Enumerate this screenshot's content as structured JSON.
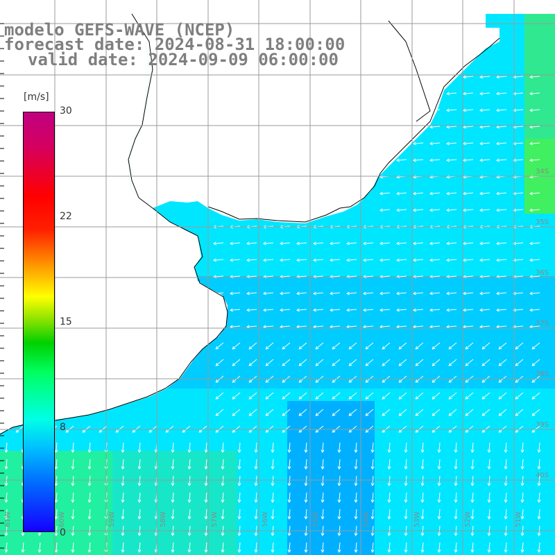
{
  "title": {
    "line1": "modelo GEFS-WAVE (NCEP)",
    "line2": "forecast date: 2024-08-31 18:00:00",
    "line3": "valid date: 2024-09-09 06:00:00"
  },
  "colorbar": {
    "units": "[m/s]",
    "ticks": [
      {
        "label": "30",
        "value": 30
      },
      {
        "label": "22",
        "value": 22
      },
      {
        "label": "15",
        "value": 15
      },
      {
        "label": "8",
        "value": 8
      },
      {
        "label": "0",
        "value": 0
      }
    ]
  },
  "latitude_labels": [
    "34S",
    "35S",
    "36S",
    "37S",
    "38S",
    "39S",
    "40S"
  ],
  "longitude_labels": [
    "61W",
    "60W",
    "59W",
    "58W",
    "57W",
    "56W",
    "55W",
    "54W",
    "53W",
    "52W",
    "51W"
  ],
  "colors": {
    "land": "#ffffff",
    "coastline": "#000000",
    "grid": "#9a9a9a",
    "title_text": "#7f7f7f",
    "arrow": "#ffffff"
  }
}
